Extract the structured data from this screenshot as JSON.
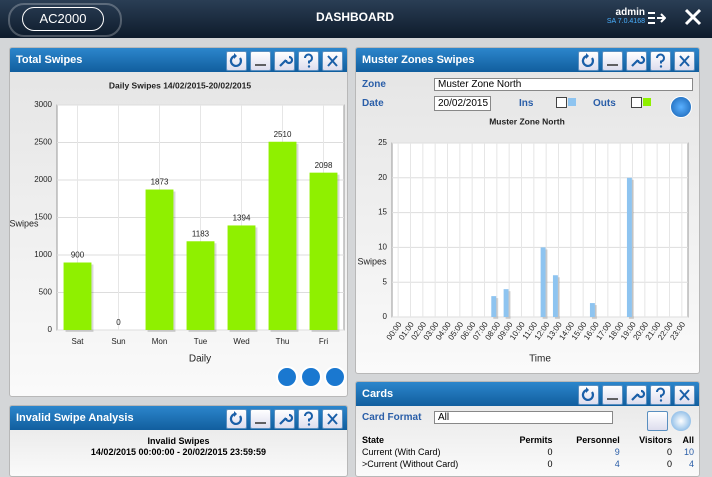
{
  "header": {
    "app": "AC2000",
    "title": "DASHBOARD",
    "user": "admin",
    "version": "SA 7.0.4168"
  },
  "panels": {
    "total": {
      "title": "Total Swipes"
    },
    "muster": {
      "title": "Muster Zones Swipes",
      "zone_label": "Zone",
      "zone": "Muster Zone North",
      "date_label": "Date",
      "date": "20/02/2015"
    },
    "invalid": {
      "title": "Invalid Swipe Analysis",
      "subtitle": "Invalid Swipes",
      "range": "14/02/2015 00:00:00 - 20/02/2015 23:59:59"
    },
    "cards": {
      "title": "Cards",
      "format_label": "Card Format",
      "format": "All",
      "table": {
        "columns": [
          "State",
          "Permits",
          "Personnel",
          "Visitors",
          "All"
        ],
        "rows": [
          [
            "Current (With Card)",
            0,
            9,
            0,
            10
          ],
          [
            ">Current (Without Card)",
            0,
            4,
            0,
            4
          ]
        ]
      }
    }
  },
  "chart_data": [
    {
      "type": "bar",
      "title": "Daily Swipes 14/02/2015-20/02/2015",
      "y_label": "Swipes",
      "x_label": "Daily",
      "categories": [
        "Sat",
        "Sun",
        "Mon",
        "Tue",
        "Wed",
        "Thu",
        "Fri"
      ],
      "values": [
        900,
        0,
        1873,
        1183,
        1394,
        2510,
        2098
      ],
      "color": "#8ff000",
      "ylim": [
        0,
        3000
      ],
      "yticks": [
        0,
        500,
        1000,
        1500,
        2000,
        2500,
        3000
      ],
      "grid": true
    },
    {
      "type": "bar",
      "title": "Muster Zone North",
      "y_label": "Swipes",
      "x_label": "Time",
      "categories": [
        "00:00",
        "01:00",
        "02:00",
        "03:00",
        "04:00",
        "05:00",
        "06:00",
        "07:00",
        "08:00",
        "09:00",
        "10:00",
        "11:00",
        "12:00",
        "13:00",
        "14:00",
        "15:00",
        "16:00",
        "17:00",
        "18:00",
        "19:00",
        "20:00",
        "21:00",
        "22:00",
        "23:00"
      ],
      "series": [
        {
          "name": "Ins",
          "color": "#8ec4f0",
          "values": [
            0,
            0,
            0,
            0,
            0,
            0,
            0,
            0,
            3,
            4,
            0,
            0,
            10,
            6,
            0,
            0,
            2,
            0,
            0,
            20,
            0,
            0,
            0,
            0
          ]
        },
        {
          "name": "Outs",
          "color": "#8ff000",
          "values": [
            0,
            0,
            0,
            0,
            0,
            0,
            0,
            0,
            0,
            0,
            0,
            0,
            0,
            0,
            0,
            0,
            0,
            0,
            0,
            0,
            0,
            0,
            0,
            0
          ]
        }
      ],
      "ylim": [
        0,
        25
      ],
      "yticks": [
        0,
        5,
        10,
        15,
        20,
        25
      ],
      "grid": true
    }
  ]
}
